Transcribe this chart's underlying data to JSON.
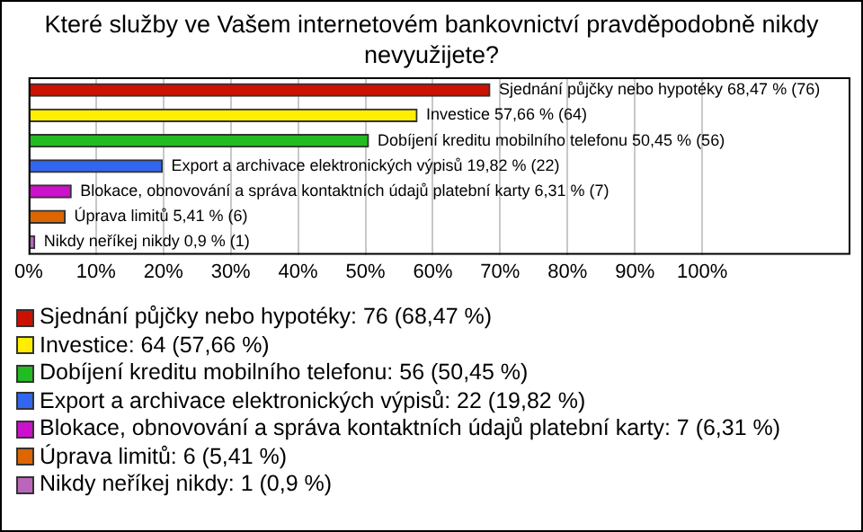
{
  "chart_data": {
    "type": "bar",
    "orientation": "horizontal",
    "title": "Které služby ve Vašem internetovém bankovnictví pravděpodobně nikdy nevyužijete?",
    "categories": [
      null,
      null,
      null,
      null,
      null,
      null,
      null
    ],
    "series": [
      {
        "name": "Sjednání půjčky nebo hypotéky: 76 (68,47 %)",
        "color": "#cc1100",
        "values": [
          68.47,
          null,
          null,
          null,
          null,
          null,
          null
        ],
        "value_labels": [
          "Sjednání půjčky nebo hypotéky 68,47 % (76)",
          null,
          null,
          null,
          null,
          null,
          null
        ]
      },
      {
        "name": "Investice: 64 (57,66 %)",
        "color": "#ffee00",
        "values": [
          null,
          57.66,
          null,
          null,
          null,
          null,
          null
        ],
        "value_labels": [
          null,
          "Investice 57,66 % (64)",
          null,
          null,
          null,
          null,
          null
        ]
      },
      {
        "name": "Dobíjení kreditu mobilního telefonu: 56 (50,45 %)",
        "color": "#22bb22",
        "values": [
          null,
          null,
          50.45,
          null,
          null,
          null,
          null
        ],
        "value_labels": [
          null,
          null,
          "Dobíjení kreditu mobilního telefonu 50,45 % (56)",
          null,
          null,
          null,
          null
        ]
      },
      {
        "name": "Export a archivace elektronických výpisů: 22 (19,82 %)",
        "color": "#3366ee",
        "values": [
          null,
          null,
          null,
          19.82,
          null,
          null,
          null
        ],
        "value_labels": [
          null,
          null,
          null,
          "Export a archivace elektronických výpisů 19,82 % (22)",
          null,
          null,
          null
        ]
      },
      {
        "name": "Blokace, obnovování a správa kontaktních údajů platební karty: 7 (6,31 %)",
        "color": "#cc11cc",
        "values": [
          null,
          null,
          null,
          null,
          6.31,
          null,
          null
        ],
        "value_labels": [
          null,
          null,
          null,
          null,
          "Blokace, obnovování a správa kontaktních údajů platební karty 6,31 % (7)",
          null,
          null
        ]
      },
      {
        "name": "Úprava limitů: 6 (5,41 %)",
        "color": "#dd6600",
        "values": [
          null,
          null,
          null,
          null,
          null,
          5.41,
          null
        ],
        "value_labels": [
          null,
          null,
          null,
          null,
          null,
          "Úprava limitů 5,41 % (6)",
          null
        ]
      },
      {
        "name": "Nikdy neříkej nikdy: 1 (0,9 %)",
        "color": "#bb66bb",
        "values": [
          null,
          null,
          null,
          null,
          null,
          null,
          0.9
        ],
        "value_labels": [
          null,
          null,
          null,
          null,
          null,
          null,
          "Nikdy neříkej nikdy 0,9 % (1)"
        ]
      }
    ],
    "xlim": [
      0,
      122
    ],
    "xticks": [
      {
        "value": 0,
        "label": "0%"
      },
      {
        "value": 10,
        "label": "10%"
      },
      {
        "value": 20,
        "label": "20%"
      },
      {
        "value": 30,
        "label": "30%"
      },
      {
        "value": 40,
        "label": "40%"
      },
      {
        "value": 50,
        "label": "50%"
      },
      {
        "value": 60,
        "label": "60%"
      },
      {
        "value": 70,
        "label": "70%"
      },
      {
        "value": 80,
        "label": "80%"
      },
      {
        "value": 90,
        "label": "90%"
      },
      {
        "value": 100,
        "label": "100%"
      }
    ],
    "grid": "x",
    "legend": "bottom",
    "tick_labels": "x"
  }
}
